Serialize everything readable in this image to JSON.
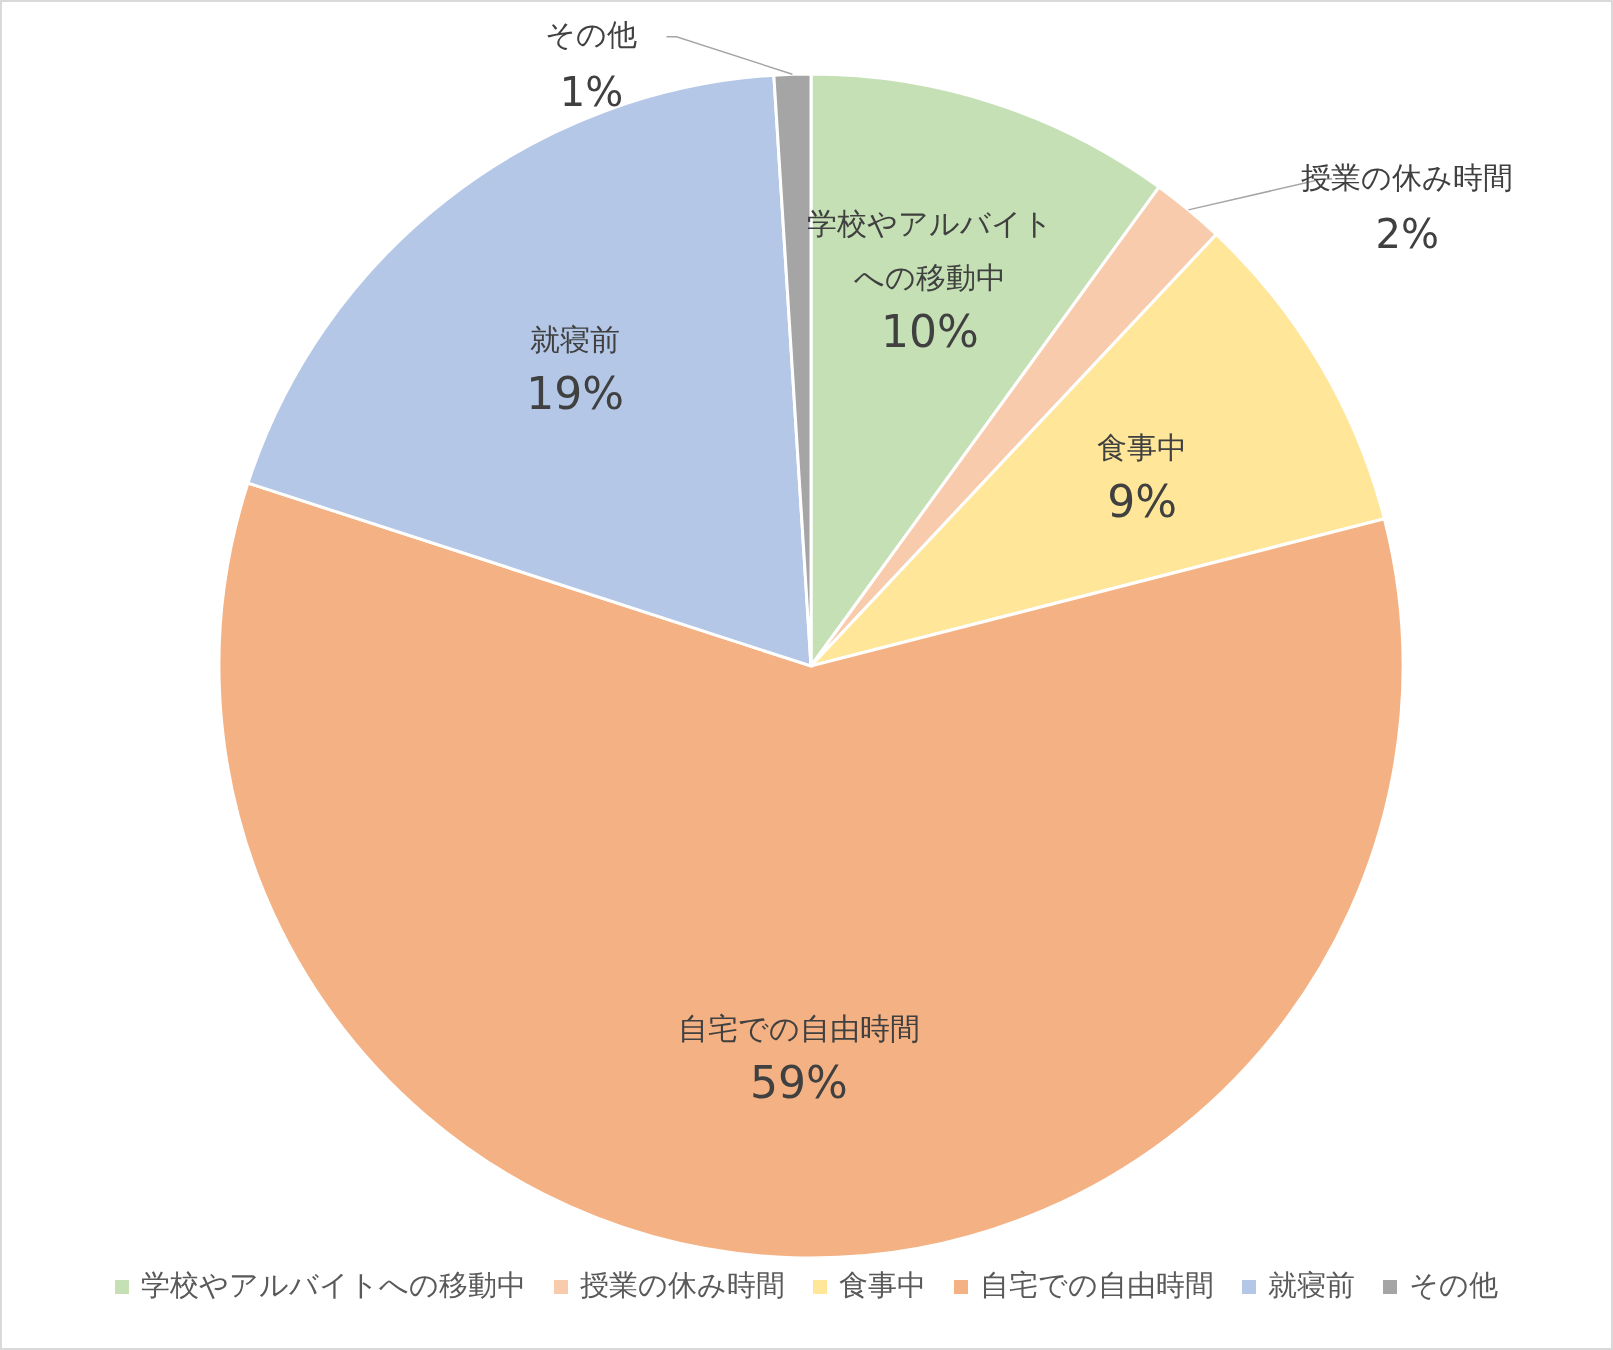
{
  "chart_data": {
    "type": "pie",
    "categories": [
      "学校やアルバイトへの移動中",
      "授業の休み時間",
      "食事中",
      "自宅での自由時間",
      "就寝前",
      "その他"
    ],
    "values": [
      10,
      2,
      9,
      59,
      19,
      1
    ],
    "colors": [
      "#c5e0b4",
      "#f8cbad",
      "#ffe699",
      "#f4b183",
      "#b4c7e7",
      "#a5a5a5"
    ],
    "value_labels": [
      "10%",
      "2%",
      "9%",
      "59%",
      "19%",
      "1%"
    ],
    "legend": "bottom"
  }
}
